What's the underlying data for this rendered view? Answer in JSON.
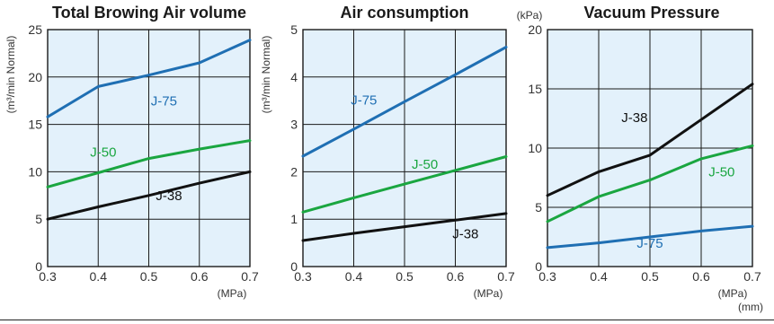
{
  "colors": {
    "panel_bg": "#e3f1fb",
    "grid": "#1a1a1a",
    "J-75": "#1f6fb3",
    "J-50": "#1aa640",
    "J-38": "#111111"
  },
  "footer_unit": "(mm)",
  "chart_data": [
    {
      "type": "line",
      "title": "Total Browing Air volume",
      "ylabel": "(m³/min Normal)",
      "y_unit_top": "",
      "x_unit": "(MPa)",
      "x": [
        0.3,
        0.4,
        0.5,
        0.6,
        0.7
      ],
      "xlim": [
        0.3,
        0.7
      ],
      "ylim": [
        0,
        25
      ],
      "yticks": [
        0,
        5,
        10,
        15,
        20,
        25
      ],
      "grid": true,
      "series": [
        {
          "name": "J-75",
          "values": [
            15.8,
            19.0,
            20.2,
            21.5,
            23.9
          ]
        },
        {
          "name": "J-50",
          "values": [
            8.4,
            9.9,
            11.4,
            12.4,
            13.3
          ]
        },
        {
          "name": "J-38",
          "values": [
            5.0,
            6.3,
            7.5,
            8.8,
            10.0
          ]
        }
      ]
    },
    {
      "type": "line",
      "title": "Air consumption",
      "ylabel": "(m³/min Normal)",
      "y_unit_top": "",
      "x_unit": "(MPa)",
      "x": [
        0.3,
        0.4,
        0.5,
        0.6,
        0.7
      ],
      "xlim": [
        0.3,
        0.7
      ],
      "ylim": [
        0,
        5
      ],
      "yticks": [
        0,
        1,
        2,
        3,
        4,
        5
      ],
      "grid": true,
      "series": [
        {
          "name": "J-75",
          "values": [
            2.33,
            2.9,
            3.48,
            4.05,
            4.63
          ]
        },
        {
          "name": "J-50",
          "values": [
            1.15,
            1.45,
            1.74,
            2.03,
            2.32
          ]
        },
        {
          "name": "J-38",
          "values": [
            0.55,
            0.7,
            0.84,
            0.98,
            1.12
          ]
        }
      ]
    },
    {
      "type": "line",
      "title": "Vacuum Pressure",
      "ylabel": "",
      "y_unit_top": "(kPa)",
      "x_unit": "(MPa)",
      "x": [
        0.3,
        0.4,
        0.5,
        0.6,
        0.7
      ],
      "xlim": [
        0.3,
        0.7
      ],
      "ylim": [
        0,
        20
      ],
      "yticks": [
        0,
        5,
        10,
        15,
        20
      ],
      "grid": true,
      "series": [
        {
          "name": "J-38",
          "values": [
            6.0,
            8.0,
            9.4,
            12.4,
            15.4
          ]
        },
        {
          "name": "J-50",
          "values": [
            3.8,
            5.9,
            7.3,
            9.1,
            10.2
          ]
        },
        {
          "name": "J-75",
          "values": [
            1.6,
            2.0,
            2.5,
            3.0,
            3.4
          ]
        }
      ]
    }
  ]
}
